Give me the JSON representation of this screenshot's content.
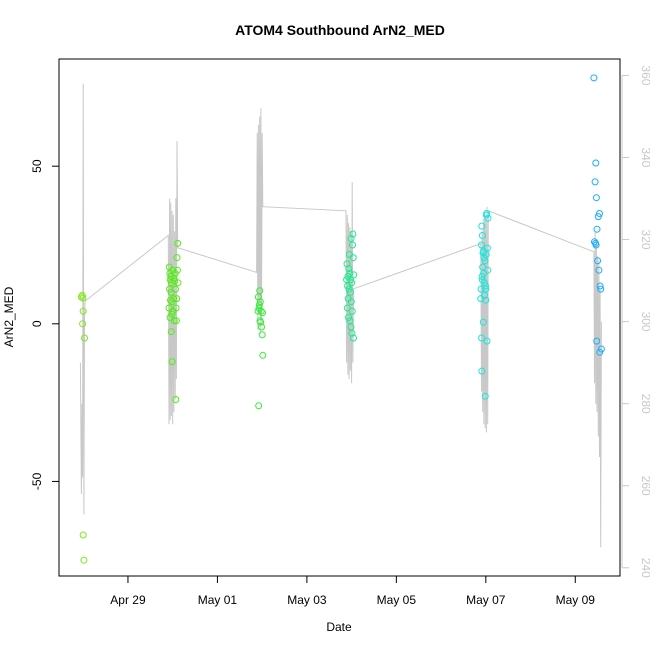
{
  "chart_data": {
    "type": "scatter",
    "title": "ATOM4 Southbound ArN2_MED",
    "xlabel": "Date",
    "ylabel": "ArN2_MED",
    "xlim": [
      "2024-04-27T11:00",
      "2024-05-10T00:00"
    ],
    "ylim": [
      -80,
      84
    ],
    "y2lim": [
      238,
      364
    ],
    "grid": false,
    "x_ticks": [
      {
        "label": "Apr 29",
        "value": "2024-04-29T00:00"
      },
      {
        "label": "May 01",
        "value": "2024-05-01T00:00"
      },
      {
        "label": "May 03",
        "value": "2024-05-03T00:00"
      },
      {
        "label": "May 05",
        "value": "2024-05-05T00:00"
      },
      {
        "label": "May 07",
        "value": "2024-05-07T00:00"
      },
      {
        "label": "May 09",
        "value": "2024-05-09T00:00"
      }
    ],
    "y_ticks": [
      {
        "label": "-50",
        "value": -50
      },
      {
        "label": "0",
        "value": 0
      },
      {
        "label": "50",
        "value": 50
      }
    ],
    "y2_ticks": [
      {
        "label": "240",
        "value": 240
      },
      {
        "label": "260",
        "value": 260
      },
      {
        "label": "280",
        "value": 280
      },
      {
        "label": "300",
        "value": 300
      },
      {
        "label": "320",
        "value": 320
      },
      {
        "label": "340",
        "value": 340
      },
      {
        "label": "360",
        "value": 360
      }
    ],
    "colors": {
      "axis": "#000000",
      "secondary_axis": "#c8c8c8",
      "line": "#c8c8c8",
      "cast1": "#7bea1a",
      "cast2": "#4ef00f",
      "cast3": "#33ee33",
      "cast4": "#17ee8c",
      "cast5": "#17e9dc",
      "cast6": "#1aaefa"
    },
    "series": [
      {
        "type": "points",
        "color_key": "cast1",
        "points": [
          [
            "2024-04-27T23:00",
            8.5
          ],
          [
            "2024-04-27T23:30",
            9.0
          ],
          [
            "2024-04-27T23:50",
            8.2
          ],
          [
            "2024-04-28T00:00",
            4.0
          ],
          [
            "2024-04-27T23:40",
            0.0
          ],
          [
            "2024-04-28T00:40",
            -4.5
          ],
          [
            "2024-04-28T00:00",
            -67.0
          ],
          [
            "2024-04-28T00:20",
            -75.0
          ]
        ]
      },
      {
        "type": "points",
        "color_key": "cast2",
        "points": [
          [
            "2024-04-29T22:10",
            18.0
          ],
          [
            "2024-04-29T22:30",
            16.0
          ],
          [
            "2024-04-29T23:00",
            15.0
          ],
          [
            "2024-04-29T22:40",
            14.0
          ],
          [
            "2024-04-29T23:20",
            13.0
          ],
          [
            "2024-04-30T00:00",
            17.0
          ],
          [
            "2024-04-29T22:20",
            11.0
          ],
          [
            "2024-04-29T23:10",
            10.0
          ],
          [
            "2024-04-30T00:30",
            8.0
          ],
          [
            "2024-04-29T22:50",
            7.5
          ],
          [
            "2024-04-29T23:40",
            7.0
          ],
          [
            "2024-04-29T22:00",
            5.0
          ],
          [
            "2024-04-30T00:10",
            4.0
          ],
          [
            "2024-04-29T23:30",
            3.0
          ],
          [
            "2024-04-29T22:35",
            2.0
          ],
          [
            "2024-04-30T00:50",
            1.0
          ],
          [
            "2024-04-29T23:15",
            -2.5
          ],
          [
            "2024-04-29T23:45",
            -12.0
          ],
          [
            "2024-04-30T01:40",
            -24.0
          ],
          [
            "2024-04-30T02:40",
            25.5
          ],
          [
            "2024-04-30T02:20",
            21.0
          ],
          [
            "2024-04-30T02:30",
            17.0
          ],
          [
            "2024-04-30T02:50",
            13.0
          ],
          [
            "2024-04-30T01:30",
            11.0
          ],
          [
            "2024-04-30T02:10",
            8.0
          ],
          [
            "2024-04-30T01:50",
            5.0
          ],
          [
            "2024-04-30T02:00",
            1.0
          ],
          [
            "2024-04-30T01:20",
            16.0
          ],
          [
            "2024-04-30T00:40",
            14.5
          ],
          [
            "2024-04-30T01:00",
            13.5
          ]
        ]
      },
      {
        "type": "points",
        "color_key": "cast3",
        "points": [
          [
            "2024-05-01T22:00",
            8.5
          ],
          [
            "2024-05-01T22:40",
            10.5
          ],
          [
            "2024-05-01T23:00",
            7.0
          ],
          [
            "2024-05-01T22:20",
            5.0
          ],
          [
            "2024-05-01T22:30",
            6.0
          ],
          [
            "2024-05-01T21:50",
            4.0
          ],
          [
            "2024-05-01T23:30",
            4.0
          ],
          [
            "2024-05-02T00:10",
            3.5
          ],
          [
            "2024-05-01T22:50",
            1.0
          ],
          [
            "2024-05-01T23:10",
            0.5
          ],
          [
            "2024-05-01T23:40",
            -1.0
          ],
          [
            "2024-05-02T00:00",
            -3.5
          ],
          [
            "2024-05-02T00:20",
            -10.0
          ],
          [
            "2024-05-01T22:10",
            -26.0
          ]
        ]
      },
      {
        "type": "points",
        "color_key": "cast4",
        "points": [
          [
            "2024-05-03T21:30",
            19.0
          ],
          [
            "2024-05-03T22:30",
            17.5
          ],
          [
            "2024-05-03T23:00",
            16.0
          ],
          [
            "2024-05-03T22:00",
            15.0
          ],
          [
            "2024-05-03T23:30",
            14.0
          ],
          [
            "2024-05-04T00:00",
            13.0
          ],
          [
            "2024-05-03T21:50",
            12.0
          ],
          [
            "2024-05-03T22:40",
            11.0
          ],
          [
            "2024-05-03T23:20",
            10.0
          ],
          [
            "2024-05-03T22:10",
            8.0
          ],
          [
            "2024-05-03T23:50",
            7.0
          ],
          [
            "2024-05-03T21:40",
            5.0
          ],
          [
            "2024-05-04T00:20",
            4.0
          ],
          [
            "2024-05-03T22:20",
            2.0
          ],
          [
            "2024-05-03T23:10",
            1.0
          ],
          [
            "2024-05-03T23:40",
            -1.0
          ],
          [
            "2024-05-04T00:10",
            -3.0
          ],
          [
            "2024-05-04T01:00",
            -4.5
          ],
          [
            "2024-05-04T00:40",
            28.5
          ],
          [
            "2024-05-03T23:45",
            27.0
          ],
          [
            "2024-05-04T00:30",
            25.0
          ],
          [
            "2024-05-03T22:50",
            22.0
          ],
          [
            "2024-05-04T00:50",
            21.0
          ],
          [
            "2024-05-04T01:10",
            15.5
          ],
          [
            "2024-05-03T21:20",
            14.0
          ]
        ]
      },
      {
        "type": "points",
        "color_key": "cast5",
        "points": [
          [
            "2024-05-06T21:50",
            31.0
          ],
          [
            "2024-05-06T21:40",
            25.0
          ],
          [
            "2024-05-06T22:10",
            28.0
          ],
          [
            "2024-05-06T22:30",
            22.5
          ],
          [
            "2024-05-06T23:00",
            21.0
          ],
          [
            "2024-05-06T23:30",
            20.0
          ],
          [
            "2024-05-06T22:20",
            18.0
          ],
          [
            "2024-05-06T22:50",
            16.0
          ],
          [
            "2024-05-06T22:00",
            15.0
          ],
          [
            "2024-05-06T23:10",
            13.0
          ],
          [
            "2024-05-06T21:30",
            11.0
          ],
          [
            "2024-05-06T23:20",
            9.0
          ],
          [
            "2024-05-06T21:20",
            8.0
          ],
          [
            "2024-05-07T00:00",
            7.5
          ],
          [
            "2024-05-06T22:40",
            0.5
          ],
          [
            "2024-05-06T21:45",
            -4.5
          ],
          [
            "2024-05-07T00:40",
            -5.5
          ],
          [
            "2024-05-06T21:55",
            -15.0
          ],
          [
            "2024-05-06T23:40",
            -23.0
          ],
          [
            "2024-05-07T00:30",
            35.0
          ],
          [
            "2024-05-07T00:20",
            34.5
          ],
          [
            "2024-05-07T01:10",
            33.5
          ],
          [
            "2024-05-07T00:50",
            24.0
          ],
          [
            "2024-05-07T00:10",
            22.0
          ],
          [
            "2024-05-07T01:00",
            17.0
          ],
          [
            "2024-05-06T23:50",
            12.0
          ],
          [
            "2024-05-06T23:55",
            11.0
          ],
          [
            "2024-05-06T22:05",
            14.0
          ],
          [
            "2024-05-06T22:45",
            23.0
          ]
        ]
      },
      {
        "type": "points",
        "color_key": "cast6",
        "points": [
          [
            "2024-05-09T10:00",
            78.0
          ],
          [
            "2024-05-09T11:00",
            51.0
          ],
          [
            "2024-05-09T10:40",
            45.0
          ],
          [
            "2024-05-09T11:20",
            40.0
          ],
          [
            "2024-05-09T13:00",
            35.0
          ],
          [
            "2024-05-09T12:20",
            34.0
          ],
          [
            "2024-05-09T11:40",
            30.0
          ],
          [
            "2024-05-09T10:20",
            26.0
          ],
          [
            "2024-05-09T10:50",
            25.5
          ],
          [
            "2024-05-09T11:10",
            25.0
          ],
          [
            "2024-05-09T12:00",
            20.0
          ],
          [
            "2024-05-09T12:40",
            17.0
          ],
          [
            "2024-05-09T13:20",
            12.0
          ],
          [
            "2024-05-09T13:40",
            11.0
          ],
          [
            "2024-05-09T11:30",
            -5.5
          ],
          [
            "2024-05-09T14:00",
            -8.0
          ],
          [
            "2024-05-09T13:10",
            -9.0
          ]
        ]
      },
      {
        "type": "line",
        "axis": "y2",
        "color_key": "line",
        "points": [
          [
            "2024-04-27T22:30",
            290
          ],
          [
            "2024-04-27T23:00",
            258
          ],
          [
            "2024-04-27T23:20",
            280
          ],
          [
            "2024-04-27T23:40",
            262
          ],
          [
            "2024-04-28T00:00",
            358
          ],
          [
            "2024-04-28T00:20",
            253
          ],
          [
            "2024-04-28T00:40",
            300
          ],
          [
            "2024-04-28T01:00",
            305
          ],
          [
            "2024-04-29T21:40",
            321
          ],
          [
            "2024-04-29T22:00",
            275
          ],
          [
            "2024-04-29T22:20",
            330
          ],
          [
            "2024-04-29T22:40",
            276
          ],
          [
            "2024-04-29T23:00",
            329
          ],
          [
            "2024-04-29T23:20",
            277
          ],
          [
            "2024-04-29T23:40",
            327
          ],
          [
            "2024-04-30T00:00",
            275
          ],
          [
            "2024-04-30T00:20",
            326
          ],
          [
            "2024-04-30T00:40",
            278
          ],
          [
            "2024-04-30T01:00",
            322
          ],
          [
            "2024-04-30T01:20",
            281
          ],
          [
            "2024-04-30T01:40",
            330
          ],
          [
            "2024-04-30T02:00",
            286
          ],
          [
            "2024-04-30T02:20",
            344
          ],
          [
            "2024-04-30T02:40",
            318
          ],
          [
            "2024-05-01T21:00",
            312
          ],
          [
            "2024-05-01T21:20",
            346
          ],
          [
            "2024-05-01T21:40",
            298
          ],
          [
            "2024-05-01T22:00",
            348
          ],
          [
            "2024-05-01T22:20",
            302
          ],
          [
            "2024-05-01T22:40",
            350
          ],
          [
            "2024-05-01T23:00",
            297
          ],
          [
            "2024-05-01T23:20",
            352
          ],
          [
            "2024-05-01T23:40",
            300
          ],
          [
            "2024-05-02T00:00",
            346
          ],
          [
            "2024-05-02T00:20",
            328
          ],
          [
            "2024-05-03T21:00",
            327
          ],
          [
            "2024-05-03T21:20",
            290
          ],
          [
            "2024-05-03T21:40",
            326
          ],
          [
            "2024-05-03T22:00",
            287
          ],
          [
            "2024-05-03T22:20",
            324
          ],
          [
            "2024-05-03T22:40",
            286
          ],
          [
            "2024-05-03T23:00",
            323
          ],
          [
            "2024-05-03T23:20",
            288
          ],
          [
            "2024-05-03T23:40",
            322
          ],
          [
            "2024-05-04T00:00",
            285
          ],
          [
            "2024-05-04T00:20",
            334
          ],
          [
            "2024-05-04T00:40",
            290
          ],
          [
            "2024-05-04T01:00",
            308
          ],
          [
            "2024-05-06T21:20",
            319
          ],
          [
            "2024-05-06T21:40",
            283
          ],
          [
            "2024-05-06T22:00",
            322
          ],
          [
            "2024-05-06T22:20",
            278
          ],
          [
            "2024-05-06T22:40",
            325
          ],
          [
            "2024-05-06T23:00",
            275
          ],
          [
            "2024-05-06T23:20",
            327
          ],
          [
            "2024-05-06T23:40",
            274
          ],
          [
            "2024-05-07T00:00",
            325
          ],
          [
            "2024-05-07T00:20",
            273
          ],
          [
            "2024-05-07T00:40",
            328
          ],
          [
            "2024-05-07T01:00",
            275
          ],
          [
            "2024-05-07T01:20",
            327
          ],
          [
            "2024-05-09T10:00",
            317
          ],
          [
            "2024-05-09T10:20",
            285
          ],
          [
            "2024-05-09T10:40",
            322
          ],
          [
            "2024-05-09T11:00",
            280
          ],
          [
            "2024-05-09T11:20",
            320
          ],
          [
            "2024-05-09T11:40",
            278
          ],
          [
            "2024-05-09T12:00",
            316
          ],
          [
            "2024-05-09T12:20",
            272
          ],
          [
            "2024-05-09T12:40",
            315
          ],
          [
            "2024-05-09T13:00",
            267
          ],
          [
            "2024-05-09T13:20",
            308
          ],
          [
            "2024-05-09T13:40",
            245
          ],
          [
            "2024-05-09T14:00",
            300
          ]
        ]
      }
    ]
  }
}
